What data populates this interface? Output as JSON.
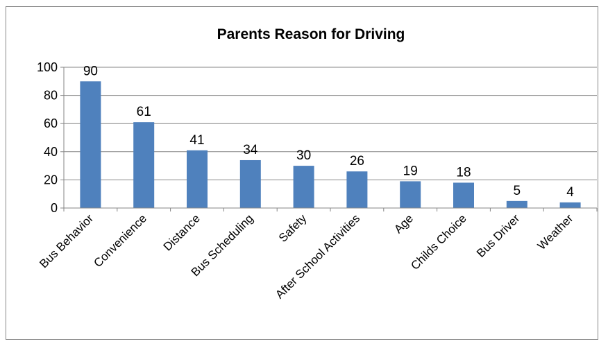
{
  "chart_data": {
    "type": "bar",
    "title": "Parents Reason for Driving",
    "xlabel": "",
    "ylabel": "",
    "categories": [
      "Bus Behavior",
      "Convenience",
      "Distance",
      "Bus Scheduling",
      "Safety",
      "After School Activities",
      "Age",
      "Childs Choice",
      "Bus Driver",
      "Weather"
    ],
    "values": [
      90,
      61,
      41,
      34,
      30,
      26,
      19,
      18,
      5,
      4
    ],
    "data_labels": [
      "90",
      "61",
      "41",
      "34",
      "30",
      "26",
      "19",
      "18",
      "5",
      "4"
    ],
    "ylim": [
      0,
      100
    ],
    "yticks": [
      "0",
      "20",
      "40",
      "60",
      "80",
      "100"
    ],
    "grid": true,
    "legend": "none",
    "bar_color": "#4f81bd",
    "grid_color": "#868686"
  }
}
